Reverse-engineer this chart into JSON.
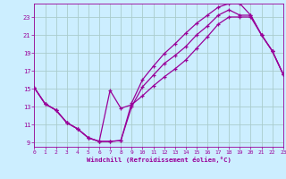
{
  "bg_color": "#cceeff",
  "grid_color": "#aacccc",
  "line_color": "#990099",
  "xlabel": "Windchill (Refroidissement éolien,°C)",
  "xlim": [
    0,
    23
  ],
  "ylim": [
    8.5,
    24.5
  ],
  "xticks": [
    0,
    1,
    2,
    3,
    4,
    5,
    6,
    7,
    8,
    9,
    10,
    11,
    12,
    13,
    14,
    15,
    16,
    17,
    18,
    19,
    20,
    21,
    22,
    23
  ],
  "yticks": [
    9,
    11,
    13,
    15,
    17,
    19,
    21,
    23
  ],
  "curve1_x": [
    0,
    1,
    2,
    3,
    4,
    5,
    6,
    7,
    8,
    9,
    10,
    11,
    12,
    13,
    14,
    15,
    16,
    17,
    18,
    19,
    20,
    21,
    22,
    23
  ],
  "curve1_y": [
    15.1,
    13.3,
    12.6,
    11.2,
    10.5,
    9.5,
    9.1,
    9.1,
    9.2,
    13.0,
    15.2,
    16.5,
    17.8,
    18.7,
    19.7,
    21.0,
    22.0,
    23.2,
    23.8,
    23.2,
    23.2,
    21.0,
    19.2,
    16.6
  ],
  "curve2_x": [
    0,
    1,
    2,
    3,
    4,
    5,
    6,
    7,
    8,
    9,
    10,
    11,
    12,
    13,
    14,
    15,
    16,
    17,
    18,
    19,
    20,
    21,
    22,
    23
  ],
  "curve2_y": [
    15.1,
    13.3,
    12.6,
    11.2,
    10.5,
    9.5,
    9.1,
    9.1,
    9.2,
    13.4,
    16.0,
    17.5,
    18.9,
    20.0,
    21.2,
    22.3,
    23.2,
    24.1,
    24.5,
    24.5,
    23.2,
    21.0,
    19.2,
    16.6
  ],
  "curve3_x": [
    0,
    1,
    2,
    3,
    4,
    5,
    6,
    7,
    8,
    9,
    10,
    11,
    12,
    13,
    14,
    15,
    16,
    17,
    18,
    19,
    20,
    21,
    22,
    23
  ],
  "curve3_y": [
    15.1,
    13.3,
    12.6,
    11.2,
    10.5,
    9.5,
    9.1,
    14.8,
    12.8,
    13.2,
    14.2,
    15.3,
    16.3,
    17.2,
    18.2,
    19.5,
    20.8,
    22.2,
    23.0,
    23.0,
    23.0,
    21.0,
    19.2,
    16.6
  ]
}
